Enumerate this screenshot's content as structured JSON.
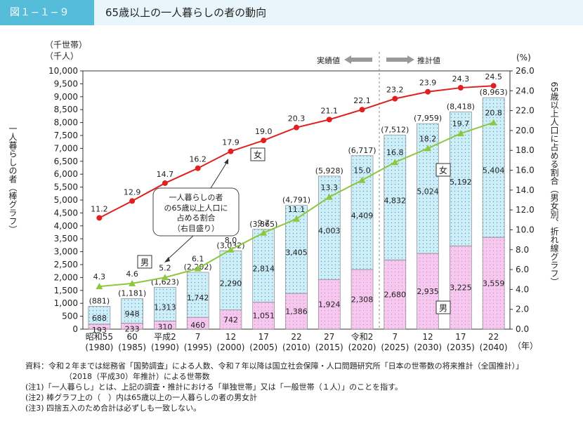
{
  "figure": {
    "label": "図１−１−９",
    "title": "65歳以上の一人暮らしの者の動向"
  },
  "colors": {
    "title_bar": "#55bcd9",
    "female_bar": "#cfeef8",
    "male_bar": "#f7c8ef",
    "female_line": "#e02020",
    "male_line": "#8dc63f"
  },
  "chart_data": {
    "type": "bar+line",
    "left_axis": {
      "unit_lines": [
        "（千世帯）",
        "（千人）"
      ],
      "label": "一人暮らしの者（棒グラフ）",
      "ylim": [
        0,
        10000
      ],
      "ticks": [
        "0",
        "500",
        "1,000",
        "1,500",
        "2,000",
        "2,500",
        "3,000",
        "3,500",
        "4,000",
        "4,500",
        "5,000",
        "5,500",
        "6,000",
        "6,500",
        "7,000",
        "7,500",
        "8,000",
        "8,500",
        "9,000",
        "9,500",
        "10,000"
      ]
    },
    "right_axis": {
      "unit": "(%)",
      "label": "65歳以上人口に占める割合（男女別、折れ線グラフ）",
      "ylim": [
        0,
        26
      ],
      "ticks": [
        "0.0",
        "2.0",
        "4.0",
        "6.0",
        "8.0",
        "10.0",
        "12.0",
        "14.0",
        "16.0",
        "18.0",
        "20.0",
        "22.0",
        "24.0",
        "26.0"
      ]
    },
    "x_unit": "（年）",
    "categories": [
      {
        "era": "昭和55",
        "year": "(1980)"
      },
      {
        "era": "60",
        "year": "(1985)"
      },
      {
        "era": "平成2",
        "year": "(1990)"
      },
      {
        "era": "7",
        "year": "(1995)"
      },
      {
        "era": "12",
        "year": "(2000)"
      },
      {
        "era": "17",
        "year": "(2005)"
      },
      {
        "era": "22",
        "year": "(2010)"
      },
      {
        "era": "27",
        "year": "(2015)"
      },
      {
        "era": "令和2",
        "year": "(2020)"
      },
      {
        "era": "7",
        "year": "(2025)"
      },
      {
        "era": "12",
        "year": "(2030)"
      },
      {
        "era": "17",
        "year": "(2035)"
      },
      {
        "era": "22",
        "year": "(2040)"
      }
    ],
    "bars": {
      "male": [
        193,
        233,
        310,
        460,
        742,
        1051,
        1386,
        1924,
        2308,
        2680,
        2935,
        3225,
        3559
      ],
      "male_labels": [
        "193",
        "233",
        "310",
        "460",
        "742",
        "1,051",
        "1,386",
        "1,924",
        "2,308",
        "2,680",
        "2,935",
        "3,225",
        "3,559"
      ],
      "female": [
        688,
        948,
        1313,
        1742,
        2290,
        2814,
        3405,
        4003,
        4409,
        4832,
        5024,
        5192,
        5404
      ],
      "female_labels": [
        "688",
        "948",
        "1,313",
        "1,742",
        "2,290",
        "2,814",
        "3,405",
        "4,003",
        "4,409",
        "4,832",
        "5,024",
        "5,192",
        "5,404"
      ],
      "totals": [
        881,
        1181,
        1623,
        2202,
        3032,
        3865,
        4791,
        5928,
        6717,
        7512,
        7959,
        8418,
        8963
      ],
      "total_labels": [
        "(881)",
        "(1,181)",
        "(1,623)",
        "(2,202)",
        "(3,032)",
        "(3,865)",
        "(4,791)",
        "(5,928)",
        "(6,717)",
        "(7,512)",
        "(7,959)",
        "(8,418)",
        "(8,963)"
      ]
    },
    "lines": {
      "female": [
        11.2,
        12.9,
        14.7,
        16.2,
        17.9,
        19.0,
        20.3,
        21.1,
        22.1,
        23.2,
        23.9,
        24.3,
        24.5
      ],
      "female_labels": [
        "11.2",
        "12.9",
        "14.7",
        "16.2",
        "17.9",
        "19.0",
        "20.3",
        "21.1",
        "22.1",
        "23.2",
        "23.9",
        "24.3",
        "24.5"
      ],
      "male": [
        4.3,
        4.6,
        5.2,
        6.1,
        8.0,
        9.7,
        11.1,
        13.3,
        15.0,
        16.8,
        18.2,
        19.7,
        20.8
      ],
      "male_labels": [
        "4.3",
        "4.6",
        "5.2",
        "6.1",
        "8.0",
        "9.7",
        "11.1",
        "13.3",
        "15.0",
        "16.8",
        "18.2",
        "19.7",
        "20.8"
      ]
    },
    "annotations": {
      "actual": "実績値",
      "projected": "推計値",
      "female_tag": "女",
      "male_tag": "男",
      "callout": [
        "一人暮らしの者",
        "の65歳以上人口に",
        "占める割合",
        "（右目盛り）"
      ]
    }
  },
  "notes": {
    "source_1": "資料：令和２年までは総務省「国勢調査」による人数、令和７年以降は国立社会保障・人口問題研究所「日本の世帯数の将来推計（全国推計）」",
    "source_2": "（2018（平成30）年推計）による世帯数",
    "note_1": "(注1)「一人暮らし」とは、上記の調査・推計における「単独世帯」又は「一般世帯（１人）」のことを指す。",
    "note_2": "(注2) 棒グラフ上の（　）内は65歳以上の一人暮らしの者の男女計",
    "note_3": "(注3) 四捨五入のため合計は必ずしも一致しない。"
  }
}
